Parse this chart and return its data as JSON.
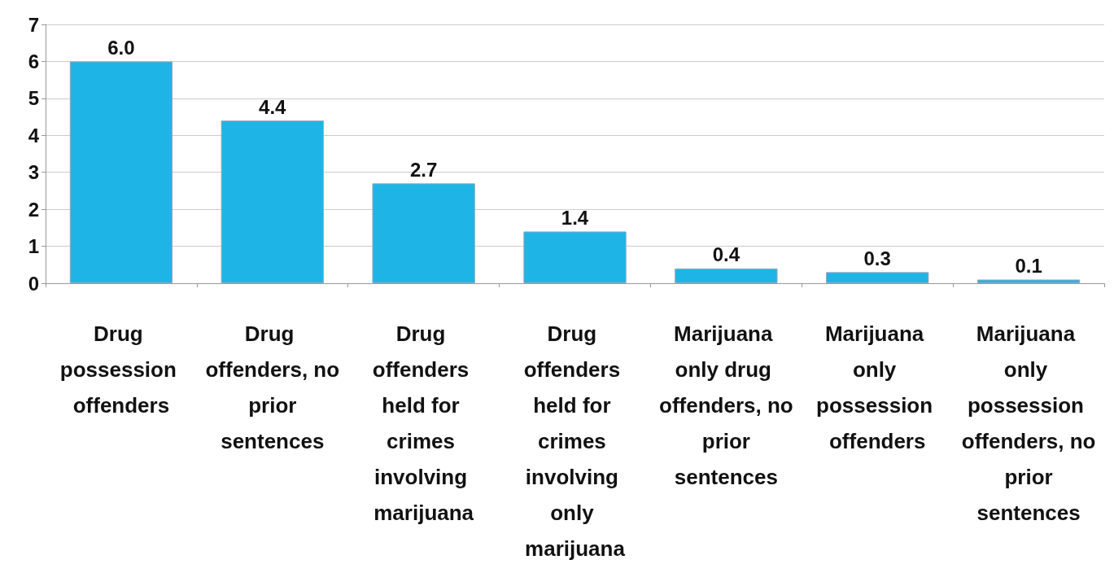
{
  "chart_data": {
    "type": "bar",
    "categories": [
      "Drug possession offenders",
      "Drug offenders, no prior sentences",
      "Drug offenders held for crimes involving marijuana",
      "Drug offenders held for crimes involving only marijuana",
      "Marijuana only drug offenders, no prior sentences",
      "Marijuana only possession offenders",
      "Marijuana only possession offenders, no prior sentences"
    ],
    "values": [
      6.0,
      4.4,
      2.7,
      1.4,
      0.4,
      0.3,
      0.1
    ],
    "color": "#1fb4e6",
    "ylim": [
      0,
      7
    ],
    "yticks": [
      0,
      1,
      2,
      3,
      4,
      5,
      6,
      7
    ],
    "grid": "y",
    "value_labels": [
      "6.0",
      "4.4",
      "2.7",
      "1.4",
      "0.4",
      "0.3",
      "0.1"
    ]
  }
}
